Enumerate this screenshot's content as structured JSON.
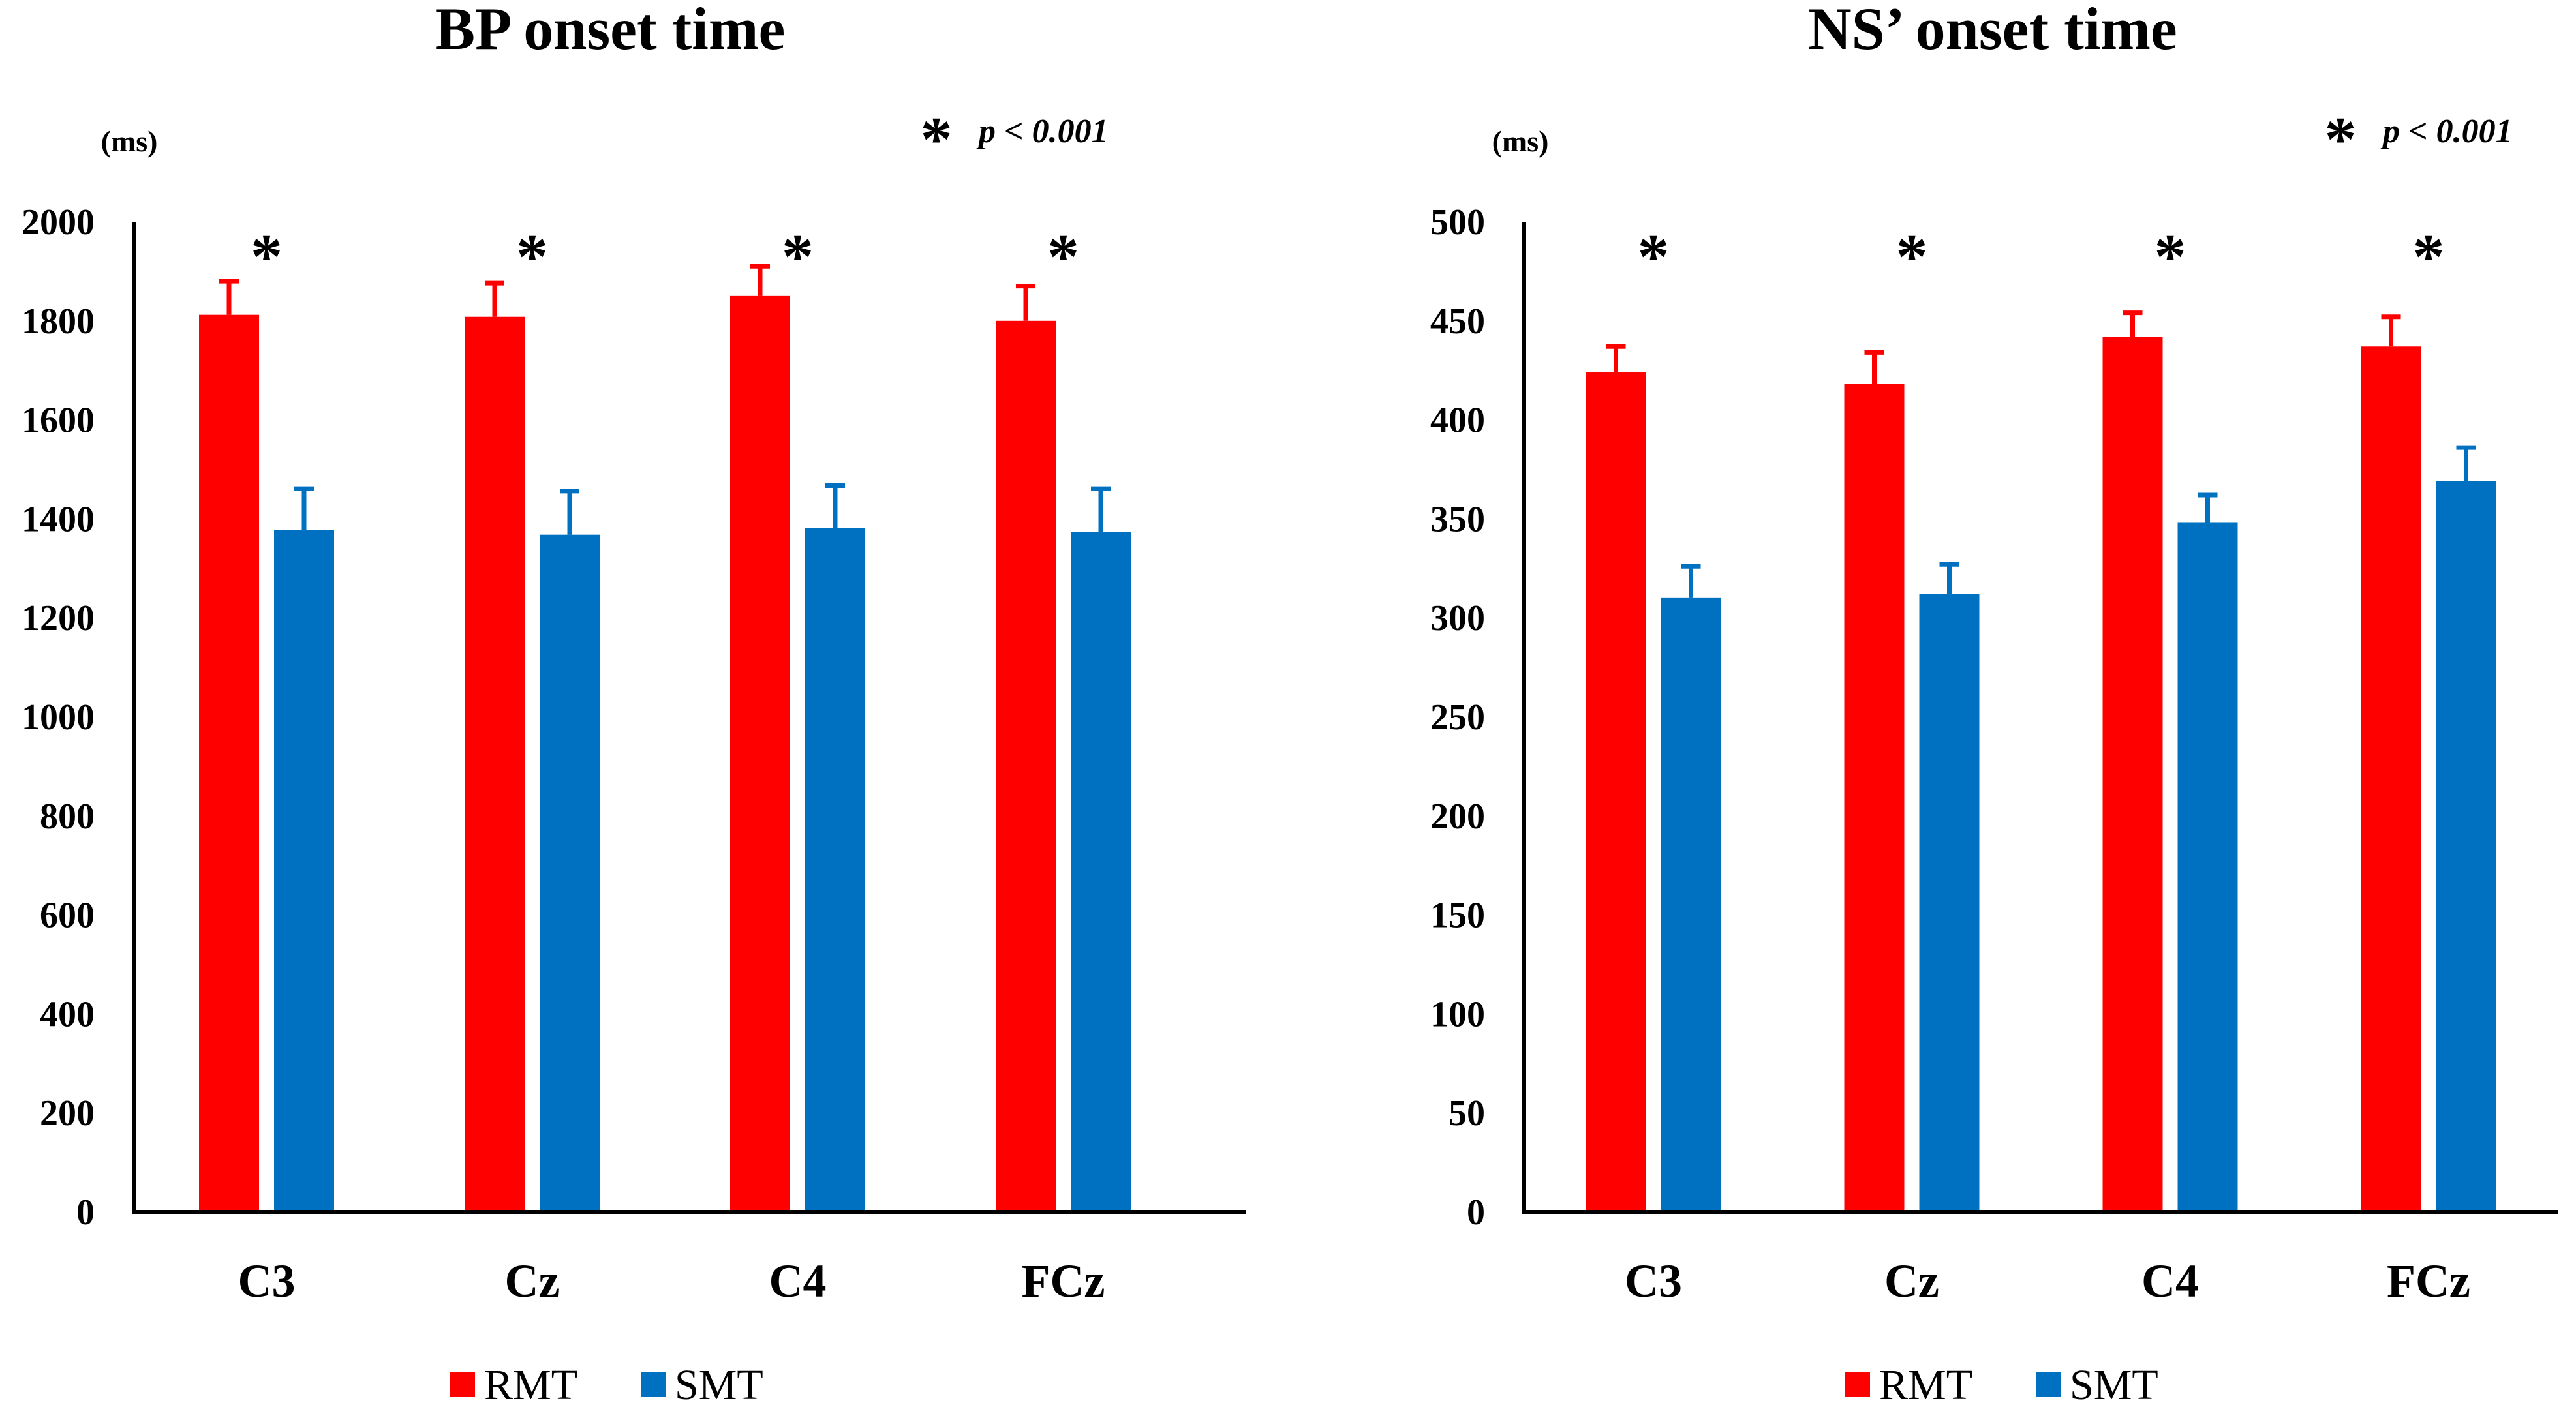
{
  "chart_data": [
    {
      "type": "bar",
      "title": "BP onset time",
      "ylabel": "(ms)",
      "xlabel": "",
      "ylim": [
        0,
        2000
      ],
      "yticks": [
        "0",
        "200",
        "400",
        "600",
        "800",
        "1000",
        "1200",
        "1400",
        "1600",
        "1800",
        "2000"
      ],
      "categories": [
        "C3",
        "Cz",
        "C4",
        "FCz"
      ],
      "series": [
        {
          "name": "RMT",
          "color": "#ff0000",
          "values": [
            1812,
            1808,
            1850,
            1800
          ],
          "errors": [
            68,
            68,
            60,
            70
          ]
        },
        {
          "name": "SMT",
          "color": "#0070c0",
          "values": [
            1378,
            1368,
            1382,
            1373
          ],
          "errors": [
            83,
            88,
            85,
            88
          ]
        }
      ],
      "significance_markers": [
        "*",
        "*",
        "*",
        "*"
      ],
      "significance_note": {
        "symbol": "*",
        "text": "p < 0.001"
      },
      "legend": "bottom"
    },
    {
      "type": "bar",
      "title": "NS’ onset time",
      "ylabel": "(ms)",
      "xlabel": "",
      "ylim": [
        0,
        500
      ],
      "yticks": [
        "0",
        "50",
        "100",
        "150",
        "200",
        "250",
        "300",
        "350",
        "400",
        "450",
        "500"
      ],
      "categories": [
        "C3",
        "Cz",
        "C4",
        "FCz"
      ],
      "series": [
        {
          "name": "RMT",
          "color": "#ff0000",
          "values": [
            424,
            418,
            442,
            437
          ],
          "errors": [
            13,
            16,
            12,
            15
          ]
        },
        {
          "name": "SMT",
          "color": "#0070c0",
          "values": [
            310,
            312,
            348,
            369
          ],
          "errors": [
            16,
            15,
            14,
            17
          ]
        }
      ],
      "significance_markers": [
        "*",
        "*",
        "*",
        "*"
      ],
      "significance_note": {
        "symbol": "*",
        "text": "p < 0.001"
      },
      "legend": "bottom"
    }
  ]
}
